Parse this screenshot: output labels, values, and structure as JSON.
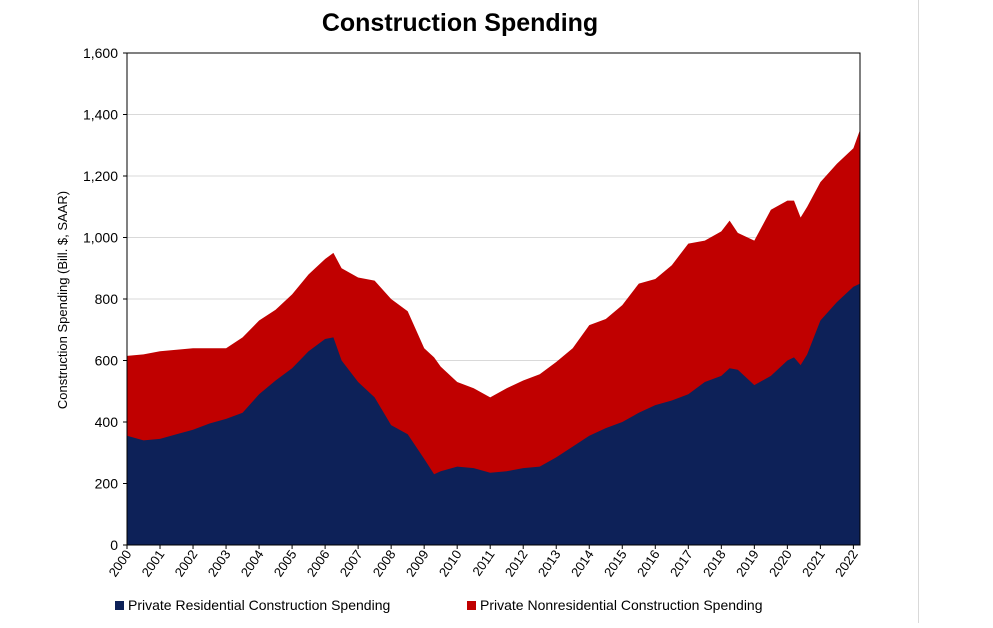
{
  "chart_data": {
    "type": "area",
    "stacked": true,
    "title": "Construction Spending",
    "ylabel": "Construction Spending (Bill. $, SAAR)",
    "xlabel": "",
    "ylim": [
      0,
      1600
    ],
    "xlim": [
      2000,
      2022.2
    ],
    "yticks": [
      "0",
      "200",
      "400",
      "600",
      "800",
      "1,000",
      "1,200",
      "1,400",
      "1,600"
    ],
    "xticks": [
      "2000",
      "2001",
      "2002",
      "2003",
      "2004",
      "2005",
      "2006",
      "2007",
      "2008",
      "2009",
      "2010",
      "2011",
      "2012",
      "2013",
      "2014",
      "2015",
      "2016",
      "2017",
      "2018",
      "2019",
      "2020",
      "2021",
      "2022"
    ],
    "grid": "horizontal",
    "legend": "bottom",
    "colors": {
      "residential": "#0d2158",
      "nonresidential": "#c00000",
      "grid": "#d9d9d9"
    },
    "x": [
      2000.0,
      2000.5,
      2001.0,
      2001.5,
      2002.0,
      2002.5,
      2003.0,
      2003.5,
      2004.0,
      2004.5,
      2005.0,
      2005.5,
      2006.0,
      2006.25,
      2006.5,
      2007.0,
      2007.5,
      2008.0,
      2008.5,
      2009.0,
      2009.3,
      2009.5,
      2010.0,
      2010.5,
      2011.0,
      2011.5,
      2012.0,
      2012.5,
      2013.0,
      2013.5,
      2014.0,
      2014.5,
      2015.0,
      2015.5,
      2016.0,
      2016.5,
      2017.0,
      2017.5,
      2018.0,
      2018.25,
      2018.5,
      2019.0,
      2019.5,
      2020.0,
      2020.2,
      2020.4,
      2020.6,
      2021.0,
      2021.5,
      2022.0,
      2022.2
    ],
    "series": [
      {
        "name": "Private Residential Construction Spending",
        "values": [
          355,
          340,
          345,
          360,
          375,
          395,
          410,
          430,
          490,
          535,
          575,
          630,
          670,
          675,
          600,
          530,
          480,
          390,
          360,
          280,
          230,
          240,
          255,
          250,
          235,
          240,
          250,
          255,
          285,
          320,
          355,
          380,
          400,
          430,
          455,
          470,
          490,
          530,
          550,
          575,
          570,
          520,
          550,
          600,
          610,
          585,
          620,
          730,
          790,
          840,
          850
        ]
      },
      {
        "name": "Private Nonresidential Construction Spending",
        "values": [
          260,
          280,
          285,
          275,
          265,
          245,
          230,
          245,
          240,
          230,
          240,
          250,
          260,
          275,
          300,
          340,
          380,
          410,
          400,
          360,
          380,
          340,
          275,
          260,
          245,
          270,
          285,
          300,
          310,
          320,
          360,
          355,
          380,
          420,
          410,
          440,
          490,
          460,
          470,
          480,
          445,
          470,
          540,
          520,
          510,
          480,
          480,
          450,
          450,
          450,
          500
        ]
      }
    ]
  }
}
